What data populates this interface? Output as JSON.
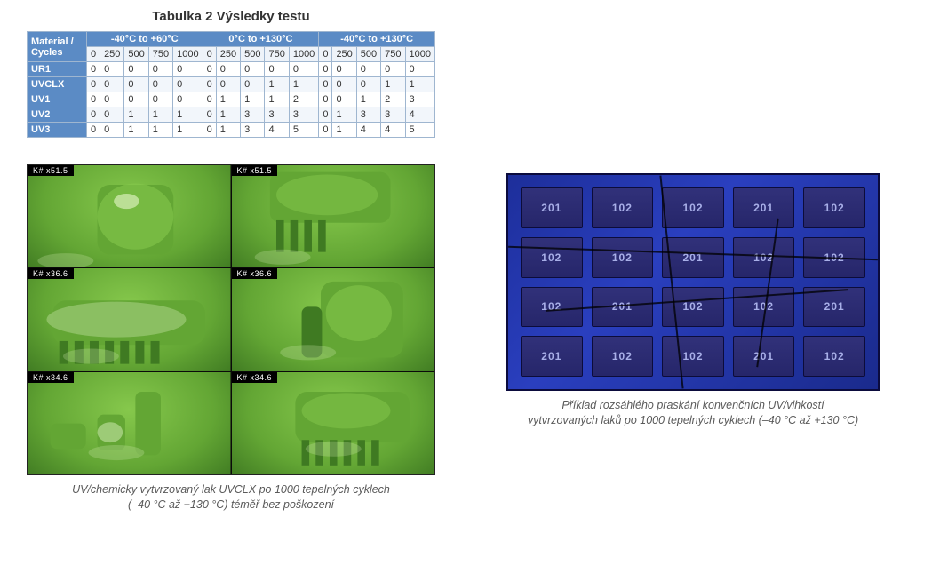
{
  "table": {
    "title": "Tabulka 2  Výsledky testu",
    "corner_label": "Material / Cycles",
    "groups": [
      "-40°C to +60°C",
      "0°C to +130°C",
      "-40°C to +130°C"
    ],
    "cycles": [
      "0",
      "250",
      "500",
      "750",
      "1000"
    ],
    "rows": [
      {
        "label": "UR1",
        "v": [
          "0",
          "0",
          "0",
          "0",
          "0",
          "0",
          "0",
          "0",
          "0",
          "0",
          "0",
          "0",
          "0",
          "0",
          "0"
        ]
      },
      {
        "label": "UVCLX",
        "v": [
          "0",
          "0",
          "0",
          "0",
          "0",
          "0",
          "0",
          "0",
          "1",
          "1",
          "0",
          "0",
          "0",
          "1",
          "1"
        ]
      },
      {
        "label": "UV1",
        "v": [
          "0",
          "0",
          "0",
          "0",
          "0",
          "0",
          "1",
          "1",
          "1",
          "2",
          "0",
          "0",
          "1",
          "2",
          "3"
        ]
      },
      {
        "label": "UV2",
        "v": [
          "0",
          "0",
          "1",
          "1",
          "1",
          "0",
          "1",
          "3",
          "3",
          "3",
          "0",
          "1",
          "3",
          "3",
          "4"
        ]
      },
      {
        "label": "UV3",
        "v": [
          "0",
          "0",
          "1",
          "1",
          "1",
          "0",
          "1",
          "3",
          "4",
          "5",
          "0",
          "1",
          "4",
          "4",
          "5"
        ]
      }
    ],
    "colors": {
      "header_bg": "#5b8bc5",
      "header_fg": "#ffffff",
      "alt_row_bg": "#f2f6fb",
      "grid_line": "#9fb6d0"
    }
  },
  "left_image": {
    "panel_labels": [
      "K#  x51.5",
      "K#  x51.5",
      "K#  x36.6",
      "K#  x36.6",
      "K#  x34.6",
      "K#  x34.6"
    ],
    "colors": {
      "coating_light": "#86c84c",
      "coating_mid": "#63a634",
      "coating_dark": "#3f7a22",
      "shine": "#d8efb9",
      "shadow": "#2d5a1a"
    },
    "caption_l1": "UV/chemicky vytvrzovaný lak UVCLX po 1000 tepelných cyklech",
    "caption_l2": "(–40 °C až +130 °C) téměř bez poškození"
  },
  "right_image": {
    "chip_label": "102",
    "chip_label_alt": "201",
    "colors": {
      "board_bg_a": "#1d2e9a",
      "board_bg_b": "#2a3fbf",
      "chip_top": "#31317a",
      "chip_bot": "#26266a",
      "chip_text": "#a8afe8",
      "crack": "#000000"
    },
    "caption_l1": "Příklad rozsáhlého praskání konvenčních UV/vlhkostí",
    "caption_l2": "vytvrzovaných laků po 1000 tepelných cyklech (–40 °C až +130 °C)"
  }
}
